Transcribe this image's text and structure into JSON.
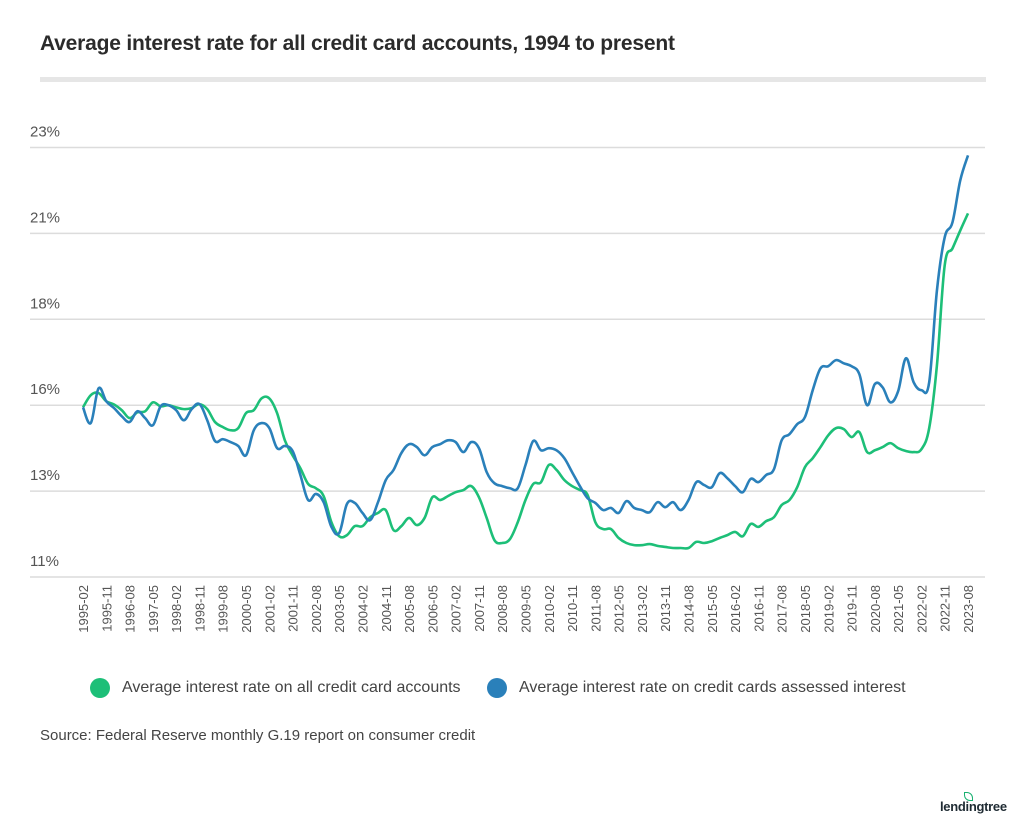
{
  "title": "Average interest rate for all credit card accounts, 1994 to present",
  "source": "Source: Federal Reserve monthly G.19 report on consumer credit",
  "logo": "lendingtree",
  "chart_data": {
    "type": "line",
    "title": "Average interest rate for all credit card accounts, 1994 to present",
    "xlabel": "",
    "ylabel": "",
    "ylim": [
      11,
      23
    ],
    "grid": "horizontal",
    "legend_placement": "bottom",
    "y_ticks": [
      11,
      13.4,
      15.8,
      18.2,
      20.6,
      23
    ],
    "y_tick_labels": [
      "11%",
      "13%",
      "16%",
      "18%",
      "21%",
      "23%"
    ],
    "x_tick_labels": [
      "1995-02",
      "1995-11",
      "1996-08",
      "1997-05",
      "1998-02",
      "1998-11",
      "1999-08",
      "2000-05",
      "2001-02",
      "2001-11",
      "2002-08",
      "2003-05",
      "2004-02",
      "2004-11",
      "2005-08",
      "2006-05",
      "2007-02",
      "2007-11",
      "2008-08",
      "2009-05",
      "2010-02",
      "2010-11",
      "2011-08",
      "2012-05",
      "2013-02",
      "2013-11",
      "2014-08",
      "2015-05",
      "2016-02",
      "2016-11",
      "2017-08",
      "2018-05",
      "2019-02",
      "2019-11",
      "2020-08",
      "2021-05",
      "2022-02",
      "2022-11",
      "2023-08"
    ],
    "x": [
      "1995-02",
      "1995-05",
      "1995-08",
      "1995-11",
      "1996-02",
      "1996-05",
      "1996-08",
      "1996-11",
      "1997-02",
      "1997-05",
      "1997-08",
      "1997-11",
      "1998-02",
      "1998-05",
      "1998-08",
      "1998-11",
      "1999-02",
      "1999-05",
      "1999-08",
      "1999-11",
      "2000-02",
      "2000-05",
      "2000-08",
      "2000-11",
      "2001-02",
      "2001-05",
      "2001-08",
      "2001-11",
      "2002-02",
      "2002-05",
      "2002-08",
      "2002-11",
      "2003-02",
      "2003-05",
      "2003-08",
      "2003-11",
      "2004-02",
      "2004-05",
      "2004-08",
      "2004-11",
      "2005-02",
      "2005-05",
      "2005-08",
      "2005-11",
      "2006-02",
      "2006-05",
      "2006-08",
      "2006-11",
      "2007-02",
      "2007-05",
      "2007-08",
      "2007-11",
      "2008-02",
      "2008-05",
      "2008-08",
      "2008-11",
      "2009-02",
      "2009-05",
      "2009-08",
      "2009-11",
      "2010-02",
      "2010-05",
      "2010-08",
      "2010-11",
      "2011-02",
      "2011-05",
      "2011-08",
      "2011-11",
      "2012-02",
      "2012-05",
      "2012-08",
      "2012-11",
      "2013-02",
      "2013-05",
      "2013-08",
      "2013-11",
      "2014-02",
      "2014-05",
      "2014-08",
      "2014-11",
      "2015-02",
      "2015-05",
      "2015-08",
      "2015-11",
      "2016-02",
      "2016-05",
      "2016-08",
      "2016-11",
      "2017-02",
      "2017-05",
      "2017-08",
      "2017-11",
      "2018-02",
      "2018-05",
      "2018-08",
      "2018-11",
      "2019-02",
      "2019-05",
      "2019-08",
      "2019-11",
      "2020-02",
      "2020-05",
      "2020-08",
      "2020-11",
      "2021-02",
      "2021-05",
      "2021-08",
      "2021-11",
      "2022-02",
      "2022-05",
      "2022-08",
      "2022-11",
      "2023-02",
      "2023-05",
      "2023-08"
    ],
    "series": [
      {
        "name": "Average interest rate on all credit card accounts",
        "color": "#1dbf78",
        "values": [
          15.74,
          16.08,
          16.14,
          15.91,
          15.82,
          15.66,
          15.44,
          15.6,
          15.63,
          15.88,
          15.77,
          15.8,
          15.74,
          15.69,
          15.72,
          15.83,
          15.69,
          15.33,
          15.19,
          15.1,
          15.16,
          15.58,
          15.66,
          15.99,
          15.99,
          15.58,
          14.82,
          14.4,
          14.04,
          13.6,
          13.48,
          13.26,
          12.53,
          12.14,
          12.17,
          12.42,
          12.42,
          12.67,
          12.79,
          12.87,
          12.31,
          12.42,
          12.65,
          12.45,
          12.65,
          13.23,
          13.15,
          13.26,
          13.37,
          13.43,
          13.54,
          13.23,
          12.65,
          12.03,
          11.95,
          12.06,
          12.53,
          13.15,
          13.6,
          13.65,
          14.13,
          13.99,
          13.71,
          13.54,
          13.43,
          13.29,
          12.53,
          12.34,
          12.34,
          12.09,
          11.95,
          11.89,
          11.89,
          11.92,
          11.87,
          11.84,
          11.81,
          11.81,
          11.81,
          11.98,
          11.95,
          12.0,
          12.09,
          12.17,
          12.26,
          12.14,
          12.48,
          12.4,
          12.56,
          12.67,
          13.01,
          13.15,
          13.51,
          14.07,
          14.32,
          14.63,
          14.96,
          15.16,
          15.13,
          14.91,
          15.05,
          14.49,
          14.54,
          14.63,
          14.74,
          14.6,
          14.52,
          14.49,
          14.57,
          15.16,
          16.92,
          19.71,
          20.18,
          20.68,
          21.16
        ]
      },
      {
        "name": "Average interest rate on credit cards assessed interest",
        "color": "#2a80ba",
        "values": [
          15.74,
          15.3,
          16.27,
          15.91,
          15.72,
          15.49,
          15.33,
          15.63,
          15.44,
          15.24,
          15.77,
          15.8,
          15.66,
          15.38,
          15.69,
          15.83,
          15.38,
          14.8,
          14.85,
          14.77,
          14.66,
          14.4,
          15.1,
          15.3,
          15.16,
          14.6,
          14.66,
          14.52,
          13.85,
          13.15,
          13.32,
          13.09,
          12.4,
          12.23,
          13.04,
          13.07,
          12.79,
          12.59,
          13.09,
          13.71,
          13.99,
          14.46,
          14.71,
          14.63,
          14.4,
          14.63,
          14.71,
          14.82,
          14.77,
          14.49,
          14.77,
          14.6,
          13.93,
          13.62,
          13.54,
          13.48,
          13.48,
          14.13,
          14.8,
          14.54,
          14.6,
          14.54,
          14.32,
          13.93,
          13.54,
          13.2,
          13.07,
          12.87,
          12.93,
          12.79,
          13.12,
          12.93,
          12.87,
          12.81,
          13.09,
          12.95,
          13.09,
          12.87,
          13.15,
          13.65,
          13.57,
          13.51,
          13.9,
          13.76,
          13.54,
          13.37,
          13.74,
          13.65,
          13.85,
          14.01,
          14.82,
          14.99,
          15.27,
          15.47,
          16.22,
          16.83,
          16.89,
          17.06,
          16.97,
          16.89,
          16.67,
          15.8,
          16.39,
          16.3,
          15.88,
          16.19,
          17.11,
          16.44,
          16.22,
          16.44,
          19.01,
          20.49,
          20.91,
          22.08,
          22.78
        ]
      }
    ]
  }
}
